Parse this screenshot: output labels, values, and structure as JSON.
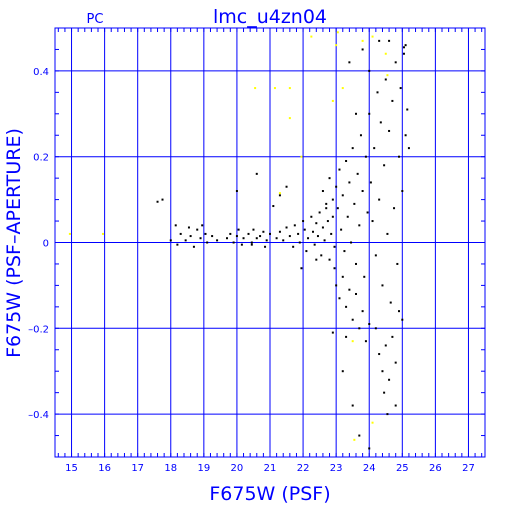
{
  "chart_data": {
    "type": "scatter",
    "title": "lmc_u4zn04",
    "corner_label": "PC",
    "xlabel": "F675W (PSF)",
    "ylabel": "F675W (PSF–APERTURE)",
    "xlim": [
      14.5,
      27.5
    ],
    "ylim": [
      -0.5,
      0.5
    ],
    "x_ticks": [
      15,
      16,
      17,
      18,
      19,
      20,
      21,
      22,
      23,
      24,
      25,
      26,
      27
    ],
    "y_ticks": [
      -0.4,
      -0.2,
      0,
      0.2,
      0.4
    ],
    "y_tick_labels": [
      "–0.4",
      "–0.2",
      "0",
      "0.2",
      "0.4"
    ],
    "grid": true,
    "colors": {
      "axes": "#0000ff",
      "main_points": "#000000",
      "highlight_points": "#ffff00"
    },
    "series": [
      {
        "color": "#000000",
        "points": [
          [
            17.6,
            0.095
          ],
          [
            17.75,
            0.1
          ],
          [
            18.0,
            0.005
          ],
          [
            18.15,
            0.04
          ],
          [
            18.2,
            -0.005
          ],
          [
            18.3,
            0.02
          ],
          [
            18.45,
            0.005
          ],
          [
            18.55,
            0.035
          ],
          [
            18.6,
            0.015
          ],
          [
            18.7,
            -0.01
          ],
          [
            18.8,
            0.03
          ],
          [
            18.9,
            0.01
          ],
          [
            18.95,
            0.04
          ],
          [
            19.05,
            0.02
          ],
          [
            19.1,
            0.0
          ],
          [
            19.25,
            0.015
          ],
          [
            19.4,
            0.005
          ],
          [
            19.7,
            0.01
          ],
          [
            19.8,
            0.02
          ],
          [
            19.9,
            0.0
          ],
          [
            20.0,
            0.015
          ],
          [
            20.05,
            0.03
          ],
          [
            20.15,
            -0.005
          ],
          [
            20.2,
            0.01
          ],
          [
            20.35,
            0.02
          ],
          [
            20.45,
            0.0
          ],
          [
            20.5,
            0.03
          ],
          [
            20.6,
            0.01
          ],
          [
            20.7,
            0.015
          ],
          [
            20.8,
            0.025
          ],
          [
            20.9,
            0.005
          ],
          [
            21.0,
            0.02
          ],
          [
            20.0,
            0.12
          ],
          [
            20.6,
            0.16
          ],
          [
            21.1,
            0.085
          ],
          [
            21.3,
            0.11
          ],
          [
            21.5,
            0.13
          ],
          [
            20.45,
            -0.005
          ],
          [
            20.85,
            -0.01
          ],
          [
            21.2,
            0.01
          ],
          [
            21.3,
            0.025
          ],
          [
            21.4,
            0.005
          ],
          [
            21.5,
            0.035
          ],
          [
            21.6,
            0.015
          ],
          [
            21.7,
            -0.01
          ],
          [
            21.75,
            0.04
          ],
          [
            21.85,
            0.02
          ],
          [
            21.9,
            0.0
          ],
          [
            22.0,
            0.05
          ],
          [
            22.05,
            0.03
          ],
          [
            22.1,
            -0.02
          ],
          [
            22.15,
            0.01
          ],
          [
            22.25,
            0.06
          ],
          [
            22.3,
            0.025
          ],
          [
            22.35,
            -0.005
          ],
          [
            22.4,
            0.045
          ],
          [
            22.45,
            0.015
          ],
          [
            22.5,
            0.07
          ],
          [
            22.55,
            -0.03
          ],
          [
            22.6,
            0.035
          ],
          [
            22.65,
            0.005
          ],
          [
            22.7,
            0.08
          ],
          [
            22.75,
            0.05
          ],
          [
            22.8,
            -0.04
          ],
          [
            22.85,
            0.02
          ],
          [
            22.9,
            0.1
          ],
          [
            22.95,
            -0.01
          ],
          [
            22.6,
            0.12
          ],
          [
            22.7,
            0.09
          ],
          [
            22.8,
            0.15
          ],
          [
            22.9,
            0.06
          ],
          [
            23.0,
            0.13
          ],
          [
            23.05,
            0.08
          ],
          [
            23.1,
            0.17
          ],
          [
            23.15,
            0.03
          ],
          [
            23.2,
            0.11
          ],
          [
            23.25,
            -0.02
          ],
          [
            23.3,
            0.19
          ],
          [
            23.35,
            0.06
          ],
          [
            23.4,
            0.14
          ],
          [
            23.45,
            0.0
          ],
          [
            23.5,
            0.22
          ],
          [
            23.55,
            0.09
          ],
          [
            23.6,
            -0.05
          ],
          [
            23.65,
            0.16
          ],
          [
            23.7,
            0.04
          ],
          [
            23.75,
            0.25
          ],
          [
            23.8,
            0.12
          ],
          [
            23.85,
            -0.08
          ],
          [
            23.9,
            0.2
          ],
          [
            23.95,
            0.07
          ],
          [
            22.95,
            -0.06
          ],
          [
            23.0,
            -0.1
          ],
          [
            23.1,
            -0.13
          ],
          [
            23.2,
            -0.08
          ],
          [
            23.3,
            -0.15
          ],
          [
            23.4,
            -0.11
          ],
          [
            23.5,
            -0.18
          ],
          [
            23.6,
            -0.12
          ],
          [
            23.7,
            -0.2
          ],
          [
            23.8,
            -0.16
          ],
          [
            23.9,
            -0.23
          ],
          [
            24.0,
            -0.19
          ],
          [
            24.0,
            0.3
          ],
          [
            24.05,
            0.14
          ],
          [
            24.1,
            0.05
          ],
          [
            24.15,
            0.22
          ],
          [
            24.2,
            -0.03
          ],
          [
            24.25,
            0.35
          ],
          [
            24.3,
            0.1
          ],
          [
            24.35,
            0.28
          ],
          [
            24.4,
            -0.1
          ],
          [
            24.45,
            0.18
          ],
          [
            24.5,
            0.38
          ],
          [
            24.55,
            0.02
          ],
          [
            24.6,
            0.26
          ],
          [
            24.65,
            -0.14
          ],
          [
            24.7,
            0.33
          ],
          [
            24.75,
            0.08
          ],
          [
            24.8,
            0.42
          ],
          [
            24.85,
            -0.05
          ],
          [
            24.9,
            0.2
          ],
          [
            24.95,
            0.36
          ],
          [
            25.0,
            0.12
          ],
          [
            25.05,
            0.44
          ],
          [
            25.1,
            0.25
          ],
          [
            25.15,
            0.31
          ],
          [
            25.2,
            0.22
          ],
          [
            24.2,
            -0.2
          ],
          [
            24.3,
            -0.26
          ],
          [
            24.4,
            -0.3
          ],
          [
            24.5,
            -0.24
          ],
          [
            24.6,
            -0.32
          ],
          [
            24.7,
            -0.22
          ],
          [
            24.8,
            -0.28
          ],
          [
            24.9,
            -0.16
          ],
          [
            25.0,
            -0.18
          ],
          [
            24.55,
            -0.4
          ],
          [
            24.45,
            -0.35
          ],
          [
            24.8,
            -0.38
          ],
          [
            23.4,
            0.42
          ],
          [
            23.6,
            0.3
          ],
          [
            23.8,
            0.45
          ],
          [
            24.0,
            0.4
          ],
          [
            24.3,
            0.47
          ],
          [
            24.6,
            0.47
          ],
          [
            25.05,
            0.455
          ],
          [
            25.1,
            0.46
          ],
          [
            23.2,
            -0.3
          ],
          [
            23.5,
            -0.38
          ],
          [
            23.7,
            -0.45
          ],
          [
            24.0,
            -0.48
          ],
          [
            23.3,
            -0.22
          ],
          [
            22.9,
            -0.21
          ],
          [
            22.4,
            -0.04
          ],
          [
            21.95,
            -0.06
          ]
        ]
      },
      {
        "color": "#ffff00",
        "points": [
          [
            14.95,
            0.02
          ],
          [
            15.95,
            0.02
          ],
          [
            20.55,
            0.36
          ],
          [
            21.15,
            0.36
          ],
          [
            21.6,
            0.36
          ],
          [
            21.6,
            0.29
          ],
          [
            21.95,
            0.2
          ],
          [
            21.3,
            0.115
          ],
          [
            22.25,
            0.48
          ],
          [
            23.0,
            0.46
          ],
          [
            23.05,
            0.49
          ],
          [
            23.8,
            0.47
          ],
          [
            24.1,
            0.48
          ],
          [
            24.55,
            0.39
          ],
          [
            24.5,
            0.44
          ],
          [
            23.5,
            -0.23
          ],
          [
            23.55,
            -0.46
          ],
          [
            24.1,
            -0.42
          ],
          [
            23.2,
            0.36
          ],
          [
            22.9,
            0.33
          ]
        ]
      }
    ]
  }
}
